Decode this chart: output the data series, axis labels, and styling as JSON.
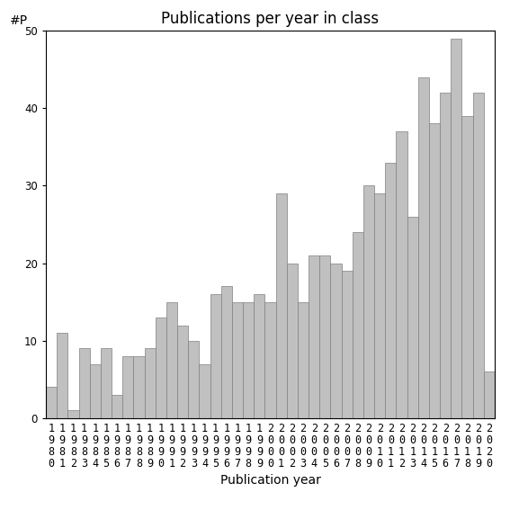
{
  "title": "Publications per year in class",
  "xlabel": "Publication year",
  "ylabel": "#P",
  "years": [
    1980,
    1981,
    1982,
    1983,
    1984,
    1985,
    1986,
    1987,
    1988,
    1989,
    1990,
    1991,
    1992,
    1993,
    1994,
    1995,
    1996,
    1997,
    1998,
    1999,
    2000,
    2001,
    2002,
    2003,
    2004,
    2005,
    2006,
    2007,
    2008,
    2009,
    2010,
    2011,
    2012,
    2013,
    2014,
    2015,
    2016,
    2017,
    2018,
    2019,
    2020
  ],
  "values": [
    4,
    11,
    1,
    9,
    7,
    9,
    3,
    8,
    8,
    9,
    13,
    15,
    12,
    10,
    7,
    16,
    17,
    15,
    15,
    16,
    15,
    29,
    20,
    15,
    21,
    21,
    20,
    19,
    24,
    30,
    29,
    33,
    37,
    26,
    44,
    38,
    42,
    49,
    39,
    42,
    6
  ],
  "bar_color": "#c0c0c0",
  "bar_edge_color": "#808080",
  "ylim": [
    0,
    50
  ],
  "yticks": [
    0,
    10,
    20,
    30,
    40,
    50
  ],
  "background_color": "#ffffff",
  "title_fontsize": 12,
  "label_fontsize": 10,
  "tick_fontsize": 8.5
}
